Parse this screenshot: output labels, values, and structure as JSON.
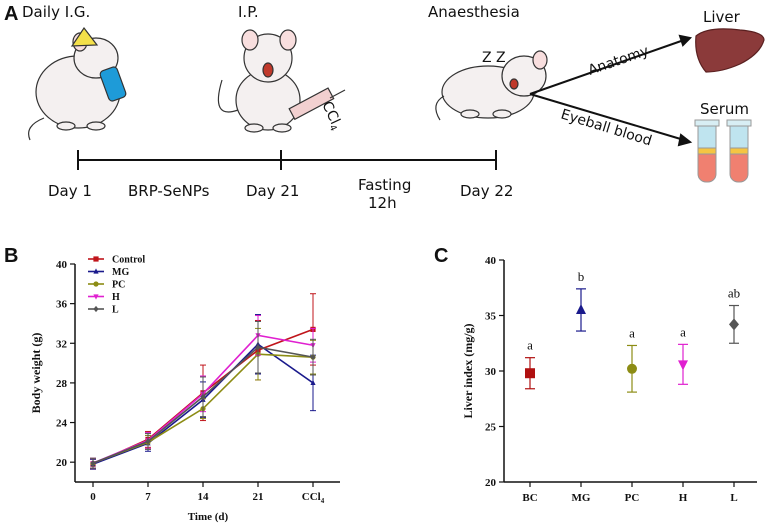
{
  "panel_a": {
    "letter": "A",
    "steps": {
      "daily_ig": "Daily I.G.",
      "ip": "I.P.",
      "anaesthesia": "Anaesthesia",
      "liver": "Liver",
      "serum": "Serum",
      "anatomy": "Anatomy",
      "eyeball_blood": "Eyeball blood",
      "ccl4_label": "CCl",
      "ccl4_sub": "4"
    },
    "timeline": {
      "day1": "Day 1",
      "brp": "BRP-SeNPs",
      "day21": "Day 21",
      "fasting": "Fasting",
      "fasting_hours": "12h",
      "day22": "Day 22"
    },
    "colors": {
      "liver": "#8b3a3a",
      "tube_top": "#bfe4ef",
      "tube_mid": "#f5c542",
      "tube_bottom": "#f08070",
      "mouse": "#f4f0f0"
    }
  },
  "chart_data": [
    {
      "panel": "B",
      "type": "line",
      "title": "",
      "xlabel": "Time (d)",
      "ylabel": "Body weight (g)",
      "categories": [
        "0",
        "7",
        "14",
        "21",
        "CCl4"
      ],
      "x_tick_main": [
        "0",
        "7",
        "14",
        "21",
        "CCl"
      ],
      "x_tick_sub": [
        "",
        "",
        "",
        "",
        "4"
      ],
      "ylim": [
        18,
        40
      ],
      "yticks": [
        20,
        24,
        28,
        32,
        36,
        40
      ],
      "legend_position": "top-left",
      "series": [
        {
          "name": "Control",
          "color": "#c0151b",
          "marker": "square",
          "values": [
            19.8,
            22.3,
            27.0,
            31.3,
            33.4
          ],
          "errors": [
            0.5,
            0.8,
            2.8,
            3.0,
            3.6
          ]
        },
        {
          "name": "MG",
          "color": "#1a1a8c",
          "marker": "triangle-up",
          "values": [
            19.8,
            21.9,
            26.3,
            31.9,
            28.0
          ],
          "errors": [
            0.5,
            0.8,
            1.8,
            3.0,
            2.8
          ]
        },
        {
          "name": "PC",
          "color": "#8c8c14",
          "marker": "circle",
          "values": [
            19.9,
            22.0,
            25.4,
            30.9,
            30.6
          ],
          "errors": [
            0.5,
            0.7,
            1.0,
            2.6,
            1.7
          ]
        },
        {
          "name": "H",
          "color": "#e020d0",
          "marker": "triangle-down",
          "values": [
            19.9,
            22.2,
            26.9,
            32.8,
            31.8
          ],
          "errors": [
            0.5,
            0.8,
            1.8,
            2.0,
            1.7
          ]
        },
        {
          "name": "L",
          "color": "#555555",
          "marker": "diamond",
          "values": [
            19.9,
            22.1,
            26.6,
            31.6,
            30.6
          ],
          "errors": [
            0.5,
            0.8,
            2.0,
            2.6,
            1.8
          ]
        }
      ]
    },
    {
      "panel": "C",
      "type": "scatter",
      "title": "",
      "xlabel": "",
      "ylabel": "Liver index (mg/g)",
      "categories": [
        "BC",
        "MG",
        "PC",
        "H",
        "L"
      ],
      "ylim": [
        20,
        40
      ],
      "yticks": [
        20,
        25,
        30,
        35,
        40
      ],
      "points": [
        {
          "group": "BC",
          "color": "#b01010",
          "marker": "square",
          "value": 29.8,
          "error": 1.4,
          "letter": "a"
        },
        {
          "group": "MG",
          "color": "#1a1a8c",
          "marker": "triangle-up",
          "value": 35.5,
          "error": 1.9,
          "letter": "b"
        },
        {
          "group": "PC",
          "color": "#8c8c14",
          "marker": "circle",
          "value": 30.2,
          "error": 2.1,
          "letter": "a"
        },
        {
          "group": "H",
          "color": "#e020d0",
          "marker": "triangle-down",
          "value": 30.6,
          "error": 1.8,
          "letter": "a"
        },
        {
          "group": "L",
          "color": "#555555",
          "marker": "diamond",
          "value": 34.2,
          "error": 1.7,
          "letter": "ab"
        }
      ]
    }
  ],
  "panel_b": {
    "letter": "B"
  },
  "panel_c": {
    "letter": "C"
  }
}
